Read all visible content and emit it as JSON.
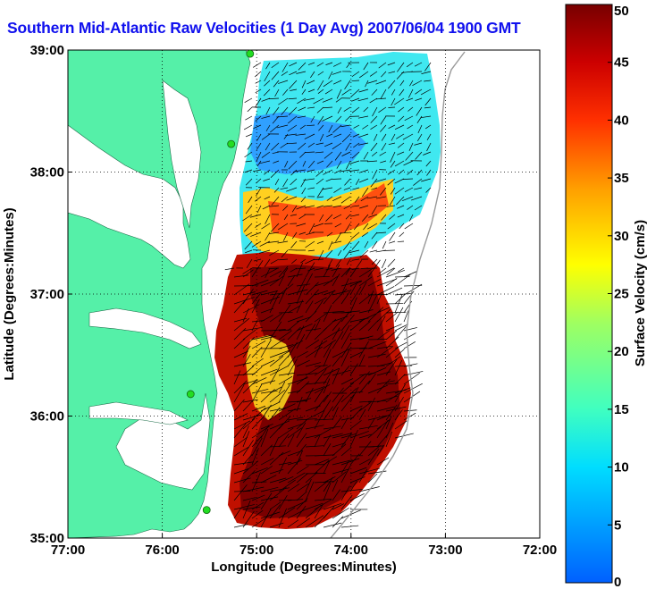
{
  "title": "Southern Mid-Atlantic Raw Velocities (1 Day Avg) 2007/06/04 1900 GMT",
  "map": {
    "lon_range": [
      -77,
      -72
    ],
    "lat_range": [
      35,
      39
    ],
    "x_ticks": [
      {
        "value": -77,
        "label": "77:00"
      },
      {
        "value": -76,
        "label": "76:00"
      },
      {
        "value": -75,
        "label": "75:00"
      },
      {
        "value": -74,
        "label": "74:00"
      },
      {
        "value": -73,
        "label": "73:00"
      },
      {
        "value": -72,
        "label": "72:00"
      }
    ],
    "y_ticks": [
      {
        "value": 39,
        "label": "39:00"
      },
      {
        "value": 38,
        "label": "38:00"
      },
      {
        "value": 37,
        "label": "37:00"
      },
      {
        "value": 36,
        "label": "36:00"
      },
      {
        "value": 35,
        "label": "35:00"
      }
    ],
    "xlabel": "Longitude (Degrees:Minutes)",
    "ylabel": "Latitude (Degrees:Minutes)",
    "grid": "dotted",
    "land_color": "#55f0a8",
    "water_color": "#ffffff",
    "stations": [
      {
        "lon": -75.07,
        "lat": 38.97
      },
      {
        "lon": -75.27,
        "lat": 38.23
      },
      {
        "lon": -75.7,
        "lat": 36.18
      },
      {
        "lon": -75.53,
        "lat": 35.23
      }
    ],
    "station_color": "#22dd22"
  },
  "colorbar": {
    "label": "Surface Velocity (cm/s)",
    "min": 0,
    "max": 50,
    "ticks": [
      0,
      5,
      10,
      15,
      20,
      25,
      30,
      35,
      40,
      45,
      50
    ],
    "colormap": "jet"
  }
}
